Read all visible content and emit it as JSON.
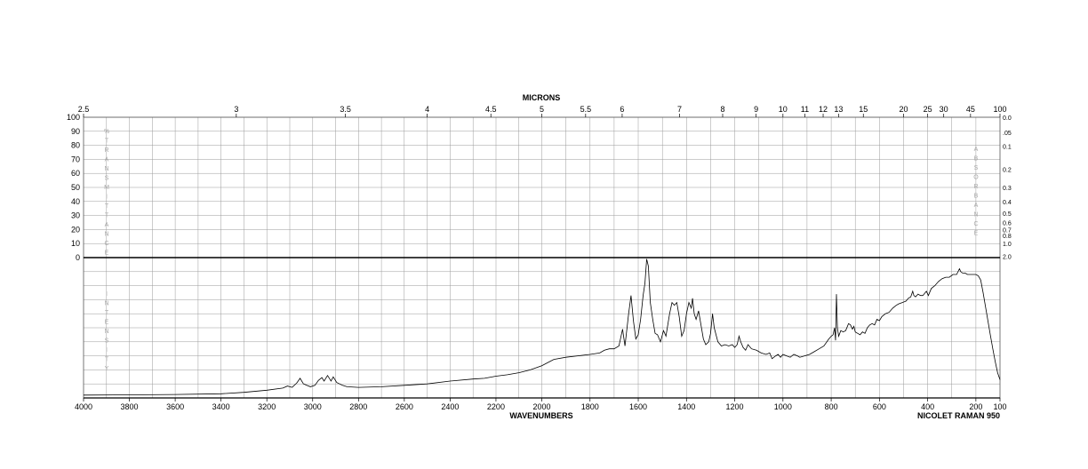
{
  "chart_data": {
    "type": "line",
    "top_axis_label": "MICRONS",
    "xlabel": "WAVENUMBERS",
    "instrument": "NICOLET RAMAN 950",
    "x_range": [
      4000,
      100
    ],
    "micron_ticks": [
      "2.5",
      "3",
      "3.5",
      "4",
      "4.5",
      "5",
      "5.5",
      "6",
      "7",
      "8",
      "9",
      "10",
      "11",
      "12",
      "13",
      "15",
      "20",
      "25",
      "30",
      "45",
      "100"
    ],
    "wavenumber_ticks": [
      "4000",
      "3800",
      "3600",
      "3400",
      "3200",
      "3000",
      "2800",
      "2600",
      "2400",
      "2200",
      "2000",
      "1800",
      "1600",
      "1400",
      "1200",
      "1000",
      "800",
      "600",
      "400",
      "200",
      "100"
    ],
    "transmittance_ticks": [
      "100",
      "90",
      "80",
      "70",
      "60",
      "50",
      "40",
      "30",
      "20",
      "10",
      "0"
    ],
    "absorbance_ticks": [
      {
        "label": "0.0",
        "t": 100
      },
      {
        "label": ".05",
        "t": 89.1
      },
      {
        "label": "0.1",
        "t": 79.4
      },
      {
        "label": "0.2",
        "t": 63.1
      },
      {
        "label": "0.3",
        "t": 50.1
      },
      {
        "label": "0.4",
        "t": 39.8
      },
      {
        "label": "0.5",
        "t": 31.6
      },
      {
        "label": "0.6",
        "t": 25.1
      },
      {
        "label": "0.7",
        "t": 20.0
      },
      {
        "label": "0.8",
        "t": 15.8
      },
      {
        "label": "1.0",
        "t": 10.0
      },
      {
        "label": "2.0",
        "t": 1.0
      }
    ],
    "left_vertical_label": "%TRANSMITTANCE",
    "right_vertical_label": "ABSORBANCE",
    "intensity_label": "INTENSITY",
    "series": [
      {
        "values": [
          [
            4000,
            2
          ],
          [
            3800,
            2.2
          ],
          [
            3600,
            2.5
          ],
          [
            3400,
            3
          ],
          [
            3300,
            4
          ],
          [
            3200,
            5.5
          ],
          [
            3130,
            7
          ],
          [
            3110,
            8.5
          ],
          [
            3090,
            7.5
          ],
          [
            3070,
            10.5
          ],
          [
            3055,
            14
          ],
          [
            3040,
            10
          ],
          [
            3010,
            8
          ],
          [
            2990,
            9
          ],
          [
            2975,
            12.5
          ],
          [
            2960,
            14.5
          ],
          [
            2950,
            12
          ],
          [
            2935,
            16
          ],
          [
            2920,
            12
          ],
          [
            2910,
            15
          ],
          [
            2895,
            11
          ],
          [
            2870,
            9
          ],
          [
            2850,
            8
          ],
          [
            2800,
            7.5
          ],
          [
            2700,
            8
          ],
          [
            2600,
            9
          ],
          [
            2500,
            10
          ],
          [
            2400,
            12
          ],
          [
            2300,
            13.5
          ],
          [
            2250,
            14
          ],
          [
            2200,
            15.5
          ],
          [
            2150,
            16.5
          ],
          [
            2100,
            18
          ],
          [
            2050,
            20
          ],
          [
            2000,
            23
          ],
          [
            1950,
            27.5
          ],
          [
            1900,
            29
          ],
          [
            1800,
            31
          ],
          [
            1760,
            32
          ],
          [
            1740,
            34
          ],
          [
            1720,
            35
          ],
          [
            1700,
            35
          ],
          [
            1680,
            37
          ],
          [
            1665,
            49
          ],
          [
            1655,
            37
          ],
          [
            1640,
            60
          ],
          [
            1630,
            73
          ],
          [
            1620,
            55
          ],
          [
            1610,
            42
          ],
          [
            1600,
            45
          ],
          [
            1590,
            56
          ],
          [
            1580,
            73
          ],
          [
            1572,
            82
          ],
          [
            1565,
            99
          ],
          [
            1558,
            94
          ],
          [
            1550,
            68
          ],
          [
            1540,
            56
          ],
          [
            1530,
            46
          ],
          [
            1520,
            45
          ],
          [
            1508,
            40
          ],
          [
            1495,
            48
          ],
          [
            1485,
            44
          ],
          [
            1470,
            60
          ],
          [
            1460,
            68
          ],
          [
            1450,
            66
          ],
          [
            1440,
            68
          ],
          [
            1430,
            58
          ],
          [
            1420,
            44
          ],
          [
            1410,
            48
          ],
          [
            1400,
            60
          ],
          [
            1390,
            68
          ],
          [
            1380,
            64
          ],
          [
            1375,
            71
          ],
          [
            1368,
            60
          ],
          [
            1360,
            56
          ],
          [
            1350,
            62
          ],
          [
            1340,
            52
          ],
          [
            1330,
            42
          ],
          [
            1320,
            38
          ],
          [
            1308,
            40
          ],
          [
            1300,
            46
          ],
          [
            1292,
            60
          ],
          [
            1285,
            50
          ],
          [
            1270,
            40
          ],
          [
            1255,
            37
          ],
          [
            1240,
            38
          ],
          [
            1225,
            37
          ],
          [
            1210,
            38
          ],
          [
            1200,
            36
          ],
          [
            1190,
            38
          ],
          [
            1182,
            44
          ],
          [
            1175,
            40
          ],
          [
            1165,
            36
          ],
          [
            1155,
            34
          ],
          [
            1145,
            38
          ],
          [
            1130,
            35
          ],
          [
            1110,
            34
          ],
          [
            1090,
            32
          ],
          [
            1070,
            31
          ],
          [
            1055,
            32
          ],
          [
            1045,
            28
          ],
          [
            1030,
            30
          ],
          [
            1020,
            31
          ],
          [
            1010,
            29
          ],
          [
            1000,
            31
          ],
          [
            985,
            30
          ],
          [
            970,
            29
          ],
          [
            955,
            31
          ],
          [
            940,
            30
          ],
          [
            930,
            29
          ],
          [
            910,
            30
          ],
          [
            890,
            31
          ],
          [
            870,
            33
          ],
          [
            850,
            35
          ],
          [
            830,
            37
          ],
          [
            810,
            42
          ],
          [
            800,
            44
          ],
          [
            792,
            45
          ],
          [
            786,
            50
          ],
          [
            782,
            41
          ],
          [
            778,
            74
          ],
          [
            774,
            50
          ],
          [
            769,
            44
          ],
          [
            760,
            48
          ],
          [
            750,
            47
          ],
          [
            740,
            48
          ],
          [
            728,
            53
          ],
          [
            720,
            52
          ],
          [
            712,
            49
          ],
          [
            706,
            51
          ],
          [
            700,
            47
          ],
          [
            690,
            46
          ],
          [
            680,
            45
          ],
          [
            670,
            47
          ],
          [
            660,
            46
          ],
          [
            650,
            50
          ],
          [
            640,
            52
          ],
          [
            630,
            53
          ],
          [
            620,
            52
          ],
          [
            610,
            56
          ],
          [
            600,
            55
          ],
          [
            590,
            58
          ],
          [
            575,
            60
          ],
          [
            560,
            61
          ],
          [
            545,
            64
          ],
          [
            530,
            66
          ],
          [
            520,
            67
          ],
          [
            505,
            68
          ],
          [
            490,
            69
          ],
          [
            480,
            71
          ],
          [
            470,
            72
          ],
          [
            462,
            76
          ],
          [
            457,
            73
          ],
          [
            450,
            72
          ],
          [
            440,
            74
          ],
          [
            430,
            73
          ],
          [
            420,
            73
          ],
          [
            405,
            76
          ],
          [
            397,
            73
          ],
          [
            385,
            78
          ],
          [
            370,
            80
          ],
          [
            355,
            83
          ],
          [
            340,
            85
          ],
          [
            325,
            86
          ],
          [
            310,
            86
          ],
          [
            295,
            88
          ],
          [
            280,
            88
          ],
          [
            268,
            92
          ],
          [
            263,
            90
          ],
          [
            255,
            89
          ],
          [
            245,
            89
          ],
          [
            235,
            88
          ],
          [
            225,
            88
          ],
          [
            210,
            88
          ],
          [
            200,
            88
          ],
          [
            190,
            87
          ],
          [
            180,
            84
          ],
          [
            170,
            75
          ],
          [
            160,
            65
          ],
          [
            150,
            55
          ],
          [
            140,
            45
          ],
          [
            130,
            35
          ],
          [
            120,
            26
          ],
          [
            110,
            18
          ],
          [
            100,
            13
          ]
        ]
      }
    ]
  }
}
